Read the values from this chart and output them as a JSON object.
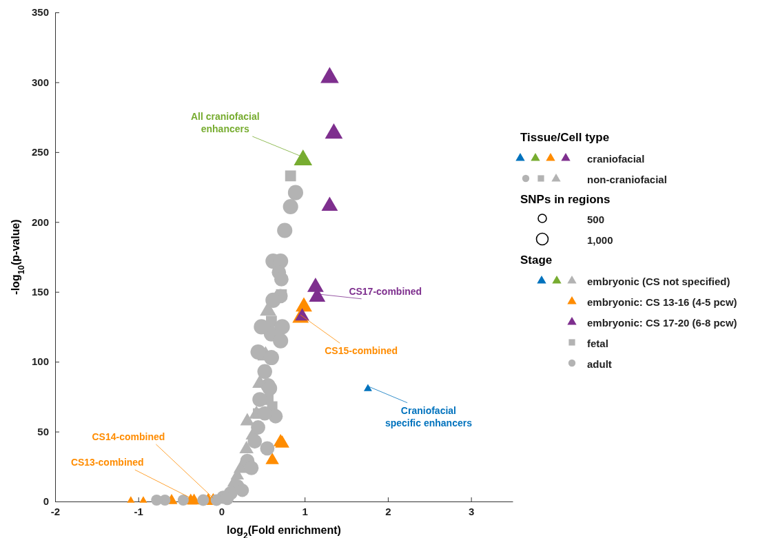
{
  "chart_data": {
    "type": "bubble",
    "xlabel": "log$_{2}$(Fold enrichment)",
    "ylabel": "-log$_{10}$(p-value)",
    "xlim": [
      -2,
      3.5
    ],
    "xticks": [
      -2,
      -1,
      0,
      1,
      2,
      3
    ],
    "ylim": [
      0,
      350
    ],
    "yticks": [
      0,
      50,
      100,
      150,
      200,
      250,
      300,
      350
    ],
    "grid": false,
    "legend": "right",
    "legend_title": "Tissue/Cell type",
    "size_legend": [
      500,
      {
        "value": 1000,
        "label": "1,000"
      }
    ],
    "series": [
      {
        "name": "embryonic (CS not specified)",
        "color": "#b3b3b3",
        "marker": "triangle",
        "x": [
          0.56,
          0.53,
          0.46,
          0.42,
          0.31,
          0.38,
          0.3,
          0.23,
          0.19,
          0.15
        ],
        "values": [
          137,
          105,
          85,
          63,
          58,
          48,
          38,
          24,
          19,
          14
        ],
        "sizes": [
          1200,
          1200,
          1000,
          1000,
          900,
          1000,
          900,
          900,
          800,
          800
        ]
      },
      {
        "color": "#0072bd",
        "marker": "triangle",
        "x": [
          1.76
        ],
        "values": [
          81
        ],
        "sizes": [
          300
        ]
      },
      {
        "color": "#77ac30",
        "marker": "triangle",
        "x": [
          0.98
        ],
        "values": [
          245
        ],
        "sizes": [
          1500
        ]
      },
      {
        "name": "embryonic: CS 13-16 (4-5 pcw)",
        "color": "#ff8c00",
        "marker": "triangle",
        "x": [
          0.99,
          0.95,
          0.71,
          0.73,
          0.61,
          -1.09,
          -0.94,
          -0.6,
          -0.37,
          -0.33,
          -0.16,
          -0.1
        ],
        "values": [
          140,
          132,
          43,
          42,
          30,
          1,
          1,
          1,
          1,
          1,
          1,
          1
        ],
        "sizes": [
          1200,
          1200,
          900,
          900,
          800,
          250,
          250,
          600,
          700,
          700,
          800,
          800
        ]
      },
      {
        "name": "embryonic: CS 17-20 (6-8 pcw)",
        "color": "#7e2f8e",
        "marker": "triangle",
        "x": [
          1.3,
          1.35,
          1.3,
          1.13,
          1.15,
          0.97
        ],
        "values": [
          304,
          264,
          212,
          154,
          147,
          133
        ],
        "sizes": [
          1500,
          1400,
          1200,
          1200,
          1200,
          900
        ]
      },
      {
        "name": "fetal",
        "color": "#b3b3b3",
        "marker": "square",
        "x": [
          0.83,
          0.72,
          0.6,
          0.56,
          0.44,
          0.61
        ],
        "values": [
          233,
          148,
          129,
          73,
          63,
          68
        ],
        "sizes": [
          1100,
          1100,
          1100,
          1100,
          1000,
          1000
        ]
      },
      {
        "name": "adult",
        "color": "#b3b3b3",
        "marker": "circle",
        "x": [
          0.89,
          0.83,
          0.76,
          0.62,
          0.71,
          0.69,
          0.72,
          0.71,
          0.62,
          0.6,
          0.48,
          0.73,
          0.44,
          0.71,
          0.6,
          0.52,
          0.56,
          0.46,
          0.58,
          0.65,
          0.44,
          0.4,
          0.31,
          0.36,
          0.19,
          0.11,
          0.02,
          -0.68,
          -0.78,
          -0.46,
          -0.22,
          -0.06,
          0.07,
          0.25,
          0.52,
          0.55
        ],
        "values": [
          221,
          211,
          194,
          172,
          172,
          164,
          159,
          147,
          144,
          120,
          125,
          125,
          107,
          115,
          103,
          93,
          83,
          73,
          81,
          61,
          53,
          43,
          29,
          24,
          11,
          6,
          3,
          1,
          1,
          1,
          1,
          1,
          2,
          8,
          63,
          38
        ],
        "sizes": [
          1700,
          1700,
          1700,
          1700,
          1700,
          1500,
          1500,
          1500,
          1700,
          1700,
          1700,
          1700,
          1700,
          1700,
          1700,
          1600,
          1600,
          1600,
          1600,
          1500,
          1500,
          1500,
          1500,
          1500,
          1400,
          1400,
          1300,
          900,
          900,
          900,
          1000,
          1000,
          1200,
          1300,
          1500,
          1500
        ]
      }
    ],
    "annotations": [
      {
        "text": "All craniofacial enhancers",
        "x": 0.98,
        "y": 245
      },
      {
        "text": "CS17-combined",
        "x": 1.15,
        "y": 147
      },
      {
        "text": "CS15-combined",
        "x": 0.95,
        "y": 132
      },
      {
        "text": "Craniofacial specific enhancers",
        "x": 1.76,
        "y": 81
      },
      {
        "text": "CS14-combined",
        "x": -0.1,
        "y": 1
      },
      {
        "text": "CS13-combined",
        "x": -0.37,
        "y": 1
      },
      "craniofacial",
      "non-craniofacial",
      "SNPs in regions",
      "Stage"
    ]
  }
}
